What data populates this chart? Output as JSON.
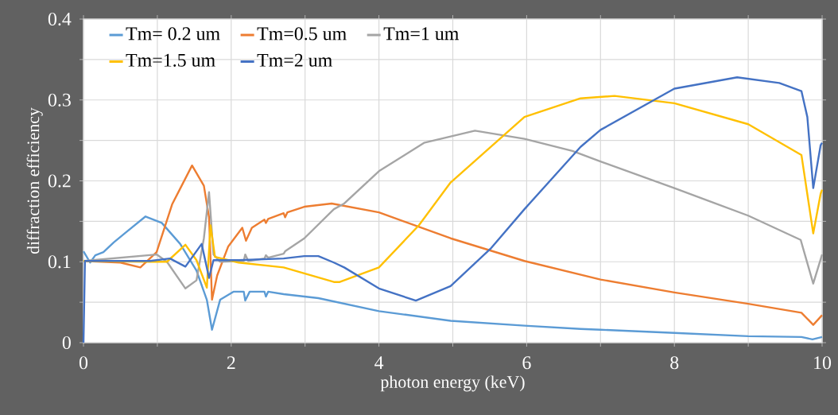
{
  "chart_data": {
    "type": "line",
    "xlabel": "photon energy (keV)",
    "ylabel": "diffraction efficiency",
    "xlim": [
      0,
      10
    ],
    "ylim": [
      0,
      0.4
    ],
    "xticks": [
      0,
      {
        "value": 1,
        "label": null
      },
      2,
      {
        "value": 3,
        "label": null
      },
      4,
      {
        "value": 5,
        "label": null
      },
      6,
      {
        "value": 7,
        "label": null
      },
      8,
      {
        "value": 9,
        "label": null
      },
      10
    ],
    "yticks": [
      0,
      {
        "value": 0.05,
        "label": null
      },
      0.1,
      {
        "value": 0.15,
        "label": null
      },
      0.2,
      {
        "value": 0.25,
        "label": null
      },
      0.3,
      {
        "value": 0.35,
        "label": null
      },
      0.4
    ],
    "grid": true,
    "legend": "top left",
    "series": [
      {
        "name": "Tm= 0.2 um",
        "color": "#5b9bd5",
        "x": [
          0,
          0.09,
          0.16,
          0.27,
          0.41,
          0.57,
          0.84,
          1.06,
          1.31,
          1.53,
          1.67,
          1.74,
          1.85,
          2.03,
          2.17,
          2.19,
          2.25,
          2.45,
          2.47,
          2.5,
          2.71,
          3.18,
          4.0,
          4.97,
          5.97,
          6.73,
          7.0,
          8.0,
          9.0,
          9.72,
          9.87,
          10
        ],
        "values": [
          0.113,
          0.099,
          0.108,
          0.112,
          0.124,
          0.136,
          0.156,
          0.148,
          0.122,
          0.089,
          0.053,
          0.016,
          0.053,
          0.063,
          0.063,
          0.052,
          0.063,
          0.063,
          0.057,
          0.063,
          0.06,
          0.055,
          0.039,
          0.027,
          0.021,
          0.017,
          0.016,
          0.012,
          0.008,
          0.007,
          0.004,
          0.007
        ]
      },
      {
        "name": "Tm=0.5 um",
        "color": "#ed7d31",
        "x": [
          0,
          0.5,
          0.77,
          0.99,
          1.2,
          1.47,
          1.63,
          1.7,
          1.74,
          1.81,
          1.96,
          2.15,
          2.2,
          2.28,
          2.45,
          2.47,
          2.5,
          2.71,
          2.73,
          2.76,
          2.99,
          3.36,
          4.0,
          4.97,
          5.97,
          7.0,
          8.0,
          9.0,
          9.72,
          9.88,
          10
        ],
        "values": [
          0.101,
          0.099,
          0.093,
          0.112,
          0.171,
          0.219,
          0.194,
          0.155,
          0.053,
          0.083,
          0.119,
          0.142,
          0.126,
          0.142,
          0.152,
          0.148,
          0.153,
          0.16,
          0.155,
          0.161,
          0.168,
          0.172,
          0.161,
          0.129,
          0.101,
          0.078,
          0.062,
          0.048,
          0.037,
          0.022,
          0.034
        ]
      },
      {
        "name": "Tm=1 um",
        "color": "#a5a5a5",
        "x": [
          0,
          0.99,
          1.13,
          1.38,
          1.53,
          1.63,
          1.7,
          1.76,
          1.85,
          2.17,
          2.19,
          2.23,
          2.45,
          2.47,
          2.5,
          2.71,
          2.73,
          2.99,
          3.39,
          3.53,
          4.0,
          4.61,
          5.3,
          5.97,
          6.62,
          7.0,
          8.0,
          9.0,
          9.71,
          9.88,
          10
        ],
        "values": [
          0.101,
          0.109,
          0.1,
          0.067,
          0.077,
          0.129,
          0.186,
          0.109,
          0.1,
          0.101,
          0.109,
          0.101,
          0.104,
          0.108,
          0.105,
          0.11,
          0.113,
          0.129,
          0.165,
          0.172,
          0.212,
          0.247,
          0.262,
          0.252,
          0.237,
          0.224,
          0.191,
          0.157,
          0.127,
          0.073,
          0.109
        ]
      },
      {
        "name": "Tm=1.5 um",
        "color": "#ffc000",
        "x": [
          0,
          0.9,
          1.13,
          1.38,
          1.53,
          1.67,
          1.72,
          1.78,
          2.1,
          2.71,
          3.39,
          3.47,
          4.0,
          4.54,
          4.97,
          5.97,
          6.73,
          7.19,
          8.0,
          9.0,
          9.72,
          9.88,
          9.98,
          10
        ],
        "values": [
          0.101,
          0.1,
          0.1,
          0.121,
          0.102,
          0.068,
          0.145,
          0.106,
          0.099,
          0.093,
          0.075,
          0.075,
          0.093,
          0.145,
          0.198,
          0.279,
          0.302,
          0.305,
          0.296,
          0.27,
          0.232,
          0.135,
          0.184,
          0.189
        ]
      },
      {
        "name": "Tm=2 um",
        "color": "#4472c4",
        "x": [
          0,
          0.02,
          0.9,
          1.17,
          1.38,
          1.6,
          1.7,
          1.76,
          2.1,
          2.71,
          2.99,
          3.18,
          3.39,
          3.53,
          4.0,
          4.5,
          4.97,
          5.51,
          5.97,
          6.73,
          7.0,
          8.0,
          8.85,
          9.42,
          9.72,
          9.8,
          9.88,
          9.98,
          10
        ],
        "values": [
          0,
          0.101,
          0.101,
          0.104,
          0.094,
          0.122,
          0.08,
          0.102,
          0.102,
          0.104,
          0.107,
          0.107,
          0.099,
          0.093,
          0.067,
          0.052,
          0.07,
          0.116,
          0.165,
          0.242,
          0.263,
          0.314,
          0.328,
          0.321,
          0.311,
          0.279,
          0.191,
          0.244,
          0.247
        ]
      }
    ]
  }
}
